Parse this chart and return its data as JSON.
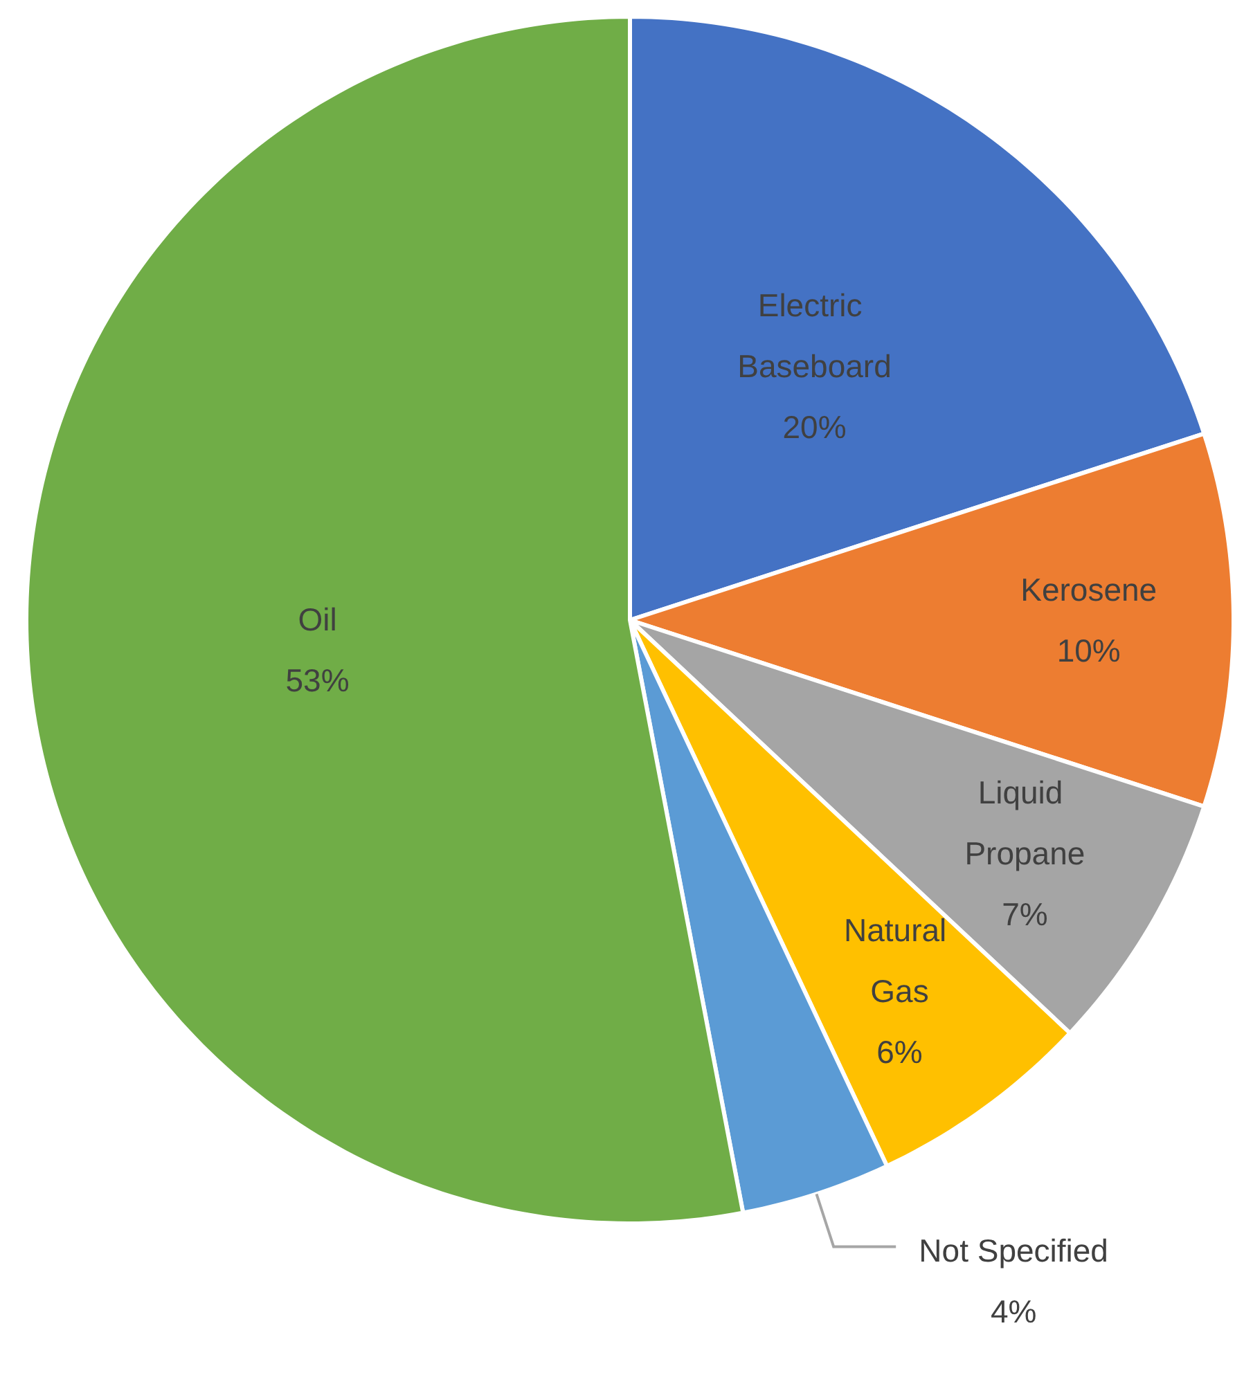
{
  "chart_data": {
    "type": "pie",
    "categories": [
      "Electric Baseboard",
      "Kerosene",
      "Liquid Propane",
      "Natural Gas",
      "Not Specified",
      "Oil"
    ],
    "values": [
      20,
      10,
      7,
      6,
      4,
      53
    ],
    "value_labels": [
      "20%",
      "10%",
      "7%",
      "6%",
      "4%",
      "53%"
    ],
    "colors": [
      "#4472c4",
      "#ed7d31",
      "#a5a5a5",
      "#ffc000",
      "#5b9bd5",
      "#70ad47"
    ]
  }
}
